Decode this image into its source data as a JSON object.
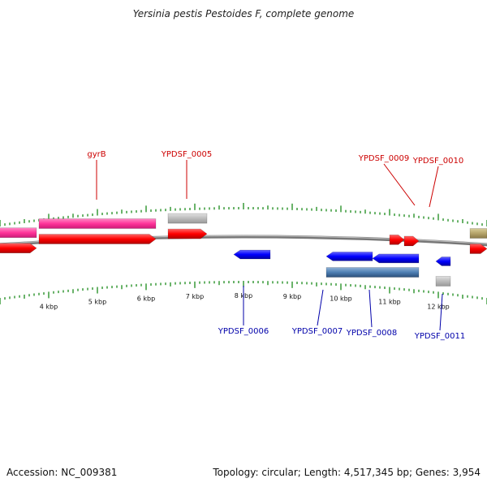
{
  "title": "Yersinia pestis Pestoides F, complete genome",
  "footer": {
    "accession": "Accession: NC_009381",
    "topology": "Topology: circular; Length: 4,517,345 bp; Genes: 3,954"
  },
  "colors": {
    "forward_cds": "#ff0000",
    "reverse_cds": "#0000ff",
    "gene_forward": "#ff3399",
    "gene_other": "#bbbbbb",
    "gene_reverse_long": "#4d7fb3",
    "gene_olive": "#b5a46a",
    "tick": "#1a8a1a",
    "backbone": "#888888",
    "label_forward": "#cc0000",
    "label_reverse": "#0000aa"
  },
  "scale": {
    "unit": "kbp",
    "tick_labels": [
      "4 kbp",
      "5 kbp",
      "6 kbp",
      "7 kbp",
      "8 kbp",
      "9 kbp",
      "10 kbp",
      "11 kbp",
      "12 kbp"
    ],
    "tick_values_kbp": [
      4,
      5,
      6,
      7,
      8,
      9,
      10,
      11,
      12
    ]
  },
  "features": [
    {
      "label": "",
      "strand": "+",
      "kind": "gene",
      "start_kbp": 2.8,
      "end_kbp": 3.75
    },
    {
      "label": "",
      "strand": "+",
      "kind": "cds",
      "start_kbp": 2.8,
      "end_kbp": 3.75
    },
    {
      "label": "gyrB",
      "strand": "+",
      "kind": "gene",
      "start_kbp": 3.8,
      "end_kbp": 6.2
    },
    {
      "label": "",
      "strand": "+",
      "kind": "cds",
      "start_kbp": 3.8,
      "end_kbp": 6.2
    },
    {
      "label": "YPDSF_0005",
      "strand": "+",
      "kind": "gene_other",
      "start_kbp": 6.45,
      "end_kbp": 7.25
    },
    {
      "label": "",
      "strand": "+",
      "kind": "cds",
      "start_kbp": 6.45,
      "end_kbp": 7.25
    },
    {
      "label": "YPDSF_0006",
      "strand": "-",
      "kind": "cds",
      "start_kbp": 7.8,
      "end_kbp": 8.55
    },
    {
      "label": "YPDSF_0007",
      "strand": "-",
      "kind": "cds",
      "start_kbp": 9.7,
      "end_kbp": 10.65
    },
    {
      "label": "YPDSF_0008",
      "strand": "-",
      "kind": "cds",
      "start_kbp": 10.65,
      "end_kbp": 11.6
    },
    {
      "label": "",
      "strand": "-",
      "kind": "gene_long",
      "start_kbp": 9.7,
      "end_kbp": 11.6
    },
    {
      "label": "YPDSF_0009",
      "strand": "+",
      "kind": "cds",
      "start_kbp": 11.0,
      "end_kbp": 11.3
    },
    {
      "label": "YPDSF_0010",
      "strand": "+",
      "kind": "cds",
      "start_kbp": 11.3,
      "end_kbp": 11.6
    },
    {
      "label": "YPDSF_0011",
      "strand": "-",
      "kind": "cds",
      "start_kbp": 11.95,
      "end_kbp": 12.25
    },
    {
      "label": "",
      "strand": "-",
      "kind": "gene_other",
      "start_kbp": 11.95,
      "end_kbp": 12.25
    },
    {
      "label": "",
      "strand": "+",
      "kind": "gene_olive",
      "start_kbp": 12.65,
      "end_kbp": 13.0
    },
    {
      "label": "",
      "strand": "+",
      "kind": "cds",
      "start_kbp": 12.65,
      "end_kbp": 13.0
    }
  ]
}
